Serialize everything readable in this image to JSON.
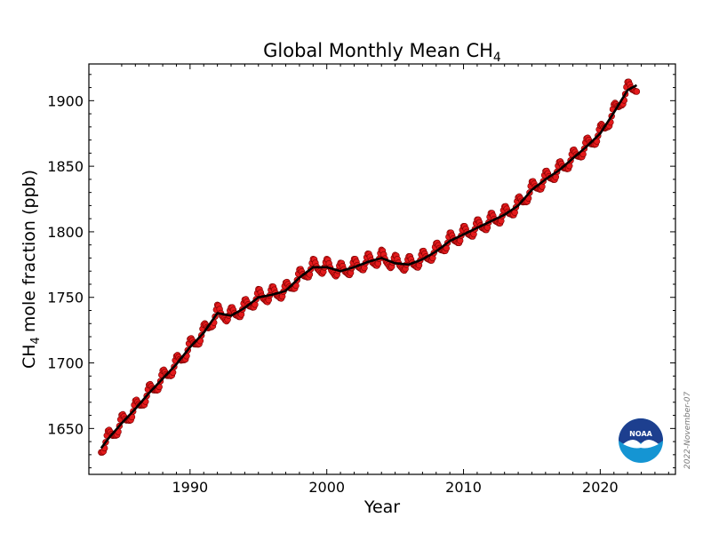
{
  "chart_data": {
    "type": "line",
    "title": "Global Monthly Mean CH",
    "title_subscript": "4",
    "xlabel": "Year",
    "ylabel": "mole fraction (ppb)",
    "ylabel_prefix": "CH",
    "ylabel_subscript": "4",
    "xlim": [
      1982.6,
      2025.5
    ],
    "ylim": [
      1615,
      1928
    ],
    "x_ticks": [
      1990,
      2000,
      2010,
      2020
    ],
    "y_ticks": [
      1650,
      1700,
      1750,
      1800,
      1850,
      1900
    ],
    "grid": false,
    "legend": "none",
    "trend_series": {
      "color": "#000000",
      "x": [
        1983.5,
        1984,
        1985,
        1986,
        1987,
        1988,
        1989,
        1990,
        1991,
        1992,
        1993,
        1994,
        1995,
        1996,
        1997,
        1998,
        1999,
        2000,
        2001,
        2002,
        2003,
        2004,
        2005,
        2006,
        2007,
        2008,
        2009,
        2010,
        2011,
        2012,
        2013,
        2014,
        2015,
        2016,
        2017,
        2018,
        2019,
        2020,
        2021,
        2022,
        2022.7
      ],
      "y": [
        1635,
        1642,
        1654,
        1665,
        1677,
        1688,
        1699,
        1712,
        1723,
        1738,
        1736,
        1742,
        1750,
        1752,
        1755,
        1765,
        1773,
        1773,
        1770,
        1773,
        1777,
        1780,
        1776,
        1775,
        1779,
        1785,
        1793,
        1798,
        1803,
        1808,
        1813,
        1820,
        1832,
        1840,
        1847,
        1856,
        1865,
        1875,
        1891,
        1908,
        1912
      ]
    },
    "monthly_series": {
      "color": "#e41a1c",
      "edge_color": "#7a0000",
      "seasonal_amplitude_ppb": 6,
      "x_start": 1983.5,
      "x_end": 2022.7
    }
  },
  "annotations": {
    "date_stamp": "2022-November-07",
    "logo_text": "NOAA"
  }
}
